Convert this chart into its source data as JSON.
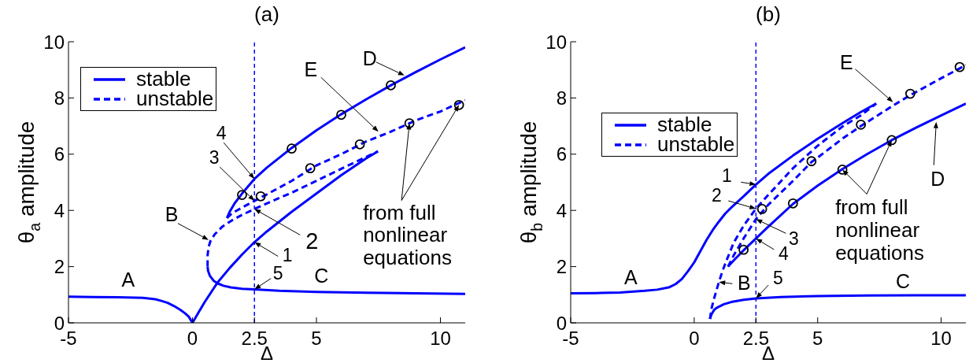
{
  "chart_data": [
    {
      "type": "line",
      "title": "(a)",
      "xlabel": "Δ",
      "ylabel": "θ$_{a}$ amplitude",
      "xlim": [
        -5,
        11
      ],
      "ylim": [
        0,
        10
      ],
      "xticks": [
        -5,
        0,
        2.5,
        5,
        10
      ],
      "yticks": [
        0,
        2,
        4,
        6,
        8,
        10
      ],
      "legend": "top left",
      "ref_lines": [
        {
          "axis": "x",
          "value": 2.5,
          "color": "#0000ff",
          "line_style": "dashed"
        }
      ],
      "annotations": [
        {
          "text": "A",
          "x": -2.5,
          "y": 0.9
        },
        {
          "text": "B",
          "x": 0.65,
          "y": 2.95
        },
        {
          "text": "C",
          "x": 5.2,
          "y": 1.1
        },
        {
          "text": "D",
          "x": 8.55,
          "y": 8.8
        },
        {
          "text": "E",
          "x": 7.5,
          "y": 6.8
        },
        {
          "text": "1",
          "x": 2.5,
          "y": 2.87
        },
        {
          "text": "2",
          "x": 2.5,
          "y": 4.05
        },
        {
          "text": "3",
          "x": 2.5,
          "y": 4.34
        },
        {
          "text": "4",
          "x": 2.5,
          "y": 5.12
        },
        {
          "text": "5",
          "x": 2.5,
          "y": 1.19
        },
        {
          "text": "from full\nnonlinear\nequations",
          "x": 8.75,
          "y": 7.1
        }
      ],
      "series": [
        {
          "name": "stable",
          "type": "line",
          "color": "#0000ff",
          "line_style": "solid",
          "x": [
            -5,
            -4,
            -3,
            -2,
            -1.5,
            -1.25,
            -1,
            -0.75,
            -0.5,
            -0.3,
            -0.15,
            0,
            0.25,
            0.5,
            1,
            1.5,
            2,
            2.5,
            3,
            4,
            5,
            6,
            7,
            7.48,
            null,
            0.61,
            0.63,
            0.7,
            0.85,
            1.02,
            1.25,
            1.55,
            2,
            2.5,
            3.5,
            5,
            7,
            9,
            11,
            null,
            1.39,
            1.5,
            1.7,
            2,
            2.5,
            3,
            4,
            5,
            6,
            7,
            8,
            9,
            10,
            11
          ],
          "values": [
            0.93,
            0.92,
            0.91,
            0.89,
            0.84,
            0.78,
            0.71,
            0.6,
            0.47,
            0.34,
            0.22,
            0,
            0.38,
            0.75,
            1.42,
            1.95,
            2.43,
            2.87,
            3.25,
            3.95,
            4.6,
            5.25,
            5.85,
            6.1,
            null,
            2.0,
            1.85,
            1.68,
            1.5,
            1.4,
            1.32,
            1.26,
            1.21,
            1.19,
            1.14,
            1.1,
            1.07,
            1.05,
            1.03,
            null,
            3.73,
            3.95,
            4.25,
            4.6,
            5.12,
            5.52,
            6.22,
            6.85,
            7.42,
            7.95,
            8.45,
            8.92,
            9.37,
            9.8
          ]
        },
        {
          "name": "unstable",
          "type": "line",
          "color": "#0000ff",
          "line_style": "dashed",
          "x": [
            0.61,
            0.61,
            0.65,
            0.73,
            0.9,
            1.2,
            1.6,
            2,
            2.5,
            3,
            4,
            5,
            6,
            7,
            7.48,
            null,
            1.39,
            1.6,
            2,
            2.5,
            3,
            4,
            5,
            6,
            7,
            8,
            9,
            10,
            11
          ],
          "values": [
            2.0,
            2.4,
            2.7,
            2.92,
            3.15,
            3.42,
            3.65,
            3.84,
            4.05,
            4.25,
            4.63,
            5.05,
            5.48,
            5.9,
            6.1,
            null,
            3.73,
            3.9,
            4.1,
            4.34,
            4.57,
            5.05,
            5.6,
            6.0,
            6.45,
            6.8,
            7.2,
            7.52,
            7.92
          ]
        },
        {
          "type": "scatter",
          "color": "#000000",
          "marker": "circle",
          "x": [
            2,
            2.75,
            4,
            4.75,
            6,
            6.75,
            8,
            8.75,
            10.75
          ],
          "values": [
            4.55,
            4.5,
            6.2,
            5.5,
            7.4,
            6.35,
            8.45,
            7.1,
            7.75
          ]
        }
      ]
    },
    {
      "type": "line",
      "title": "(b)",
      "xlabel": "Δ",
      "ylabel": "θ$_{b}$ amplitude",
      "xlim": [
        -5,
        11
      ],
      "ylim": [
        0,
        10
      ],
      "xticks": [
        -5,
        0,
        2.5,
        5,
        10
      ],
      "yticks": [
        0,
        2,
        4,
        6,
        8,
        10
      ],
      "legend": "top left",
      "ref_lines": [
        {
          "axis": "x",
          "value": 2.5,
          "color": "#0000ff",
          "line_style": "dashed"
        }
      ],
      "annotations": [
        {
          "text": "A",
          "x": -2.5,
          "y": 1.1
        },
        {
          "text": "B",
          "x": 1.0,
          "y": 1.45
        },
        {
          "text": "C",
          "x": 8.45,
          "y": 0.97
        },
        {
          "text": "D",
          "x": 9.8,
          "y": 7.15
        },
        {
          "text": "E",
          "x": 8.05,
          "y": 7.85
        },
        {
          "text": "1",
          "x": 2.5,
          "y": 4.92
        },
        {
          "text": "2",
          "x": 2.5,
          "y": 4.06
        },
        {
          "text": "3",
          "x": 2.5,
          "y": 3.69
        },
        {
          "text": "4",
          "x": 2.5,
          "y": 3.0
        },
        {
          "text": "5",
          "x": 2.5,
          "y": 0.87
        },
        {
          "text": "from full\nnonlinear\nequations",
          "x": 6,
          "y": 5.45
        }
      ],
      "series": [
        {
          "name": "stable",
          "type": "line",
          "color": "#0000ff",
          "line_style": "solid",
          "x": [
            -5,
            -4,
            -3,
            -2,
            -1.5,
            -1,
            -0.75,
            -0.5,
            -0.25,
            0,
            0.25,
            0.5,
            0.75,
            1,
            1.25,
            1.5,
            2,
            2.5,
            3,
            4,
            5,
            6,
            6.75,
            7.37,
            null,
            0.64,
            0.7,
            0.8,
            0.9,
            1.2,
            1.5,
            2,
            2.5,
            3.5,
            5,
            7,
            9,
            11,
            null,
            1.37,
            1.6,
            2,
            2.5,
            3,
            4,
            5,
            6,
            7,
            8,
            9,
            10,
            11
          ],
          "values": [
            1.05,
            1.06,
            1.08,
            1.14,
            1.18,
            1.27,
            1.38,
            1.56,
            1.84,
            2.15,
            2.55,
            2.95,
            3.3,
            3.6,
            3.88,
            4.1,
            4.5,
            4.92,
            5.3,
            5.95,
            6.55,
            7.1,
            7.5,
            7.8,
            null,
            0.14,
            0.3,
            0.45,
            0.53,
            0.66,
            0.74,
            0.82,
            0.87,
            0.92,
            0.95,
            0.97,
            0.98,
            0.98,
            null,
            2.0,
            2.22,
            2.58,
            3.0,
            3.42,
            4.23,
            4.88,
            5.47,
            6.0,
            6.5,
            6.95,
            7.38,
            7.8
          ]
        },
        {
          "name": "unstable",
          "type": "line",
          "color": "#0000ff",
          "line_style": "dashed",
          "x": [
            0.64,
            0.7,
            0.8,
            0.9,
            1.0,
            1.15,
            1.3,
            1.6,
            2,
            2.5,
            3,
            4,
            5,
            6,
            6.75,
            7.37,
            null,
            1.37,
            1.6,
            2,
            2.5,
            3,
            4,
            4.75,
            5,
            6,
            6.75,
            8,
            8.75,
            10,
            10.75,
            11
          ],
          "values": [
            0.14,
            0.5,
            0.85,
            1.15,
            1.45,
            1.85,
            2.2,
            2.85,
            3.45,
            4.06,
            4.55,
            5.5,
            6.3,
            6.98,
            7.38,
            7.8,
            null,
            2.0,
            2.4,
            3.0,
            3.69,
            4.2,
            5.05,
            5.72,
            5.88,
            6.55,
            7.0,
            7.7,
            8.1,
            8.7,
            9.05,
            9.18
          ]
        },
        {
          "type": "scatter",
          "color": "#000000",
          "marker": "circle",
          "x": [
            2,
            2.75,
            4,
            4.75,
            6,
            6.75,
            8,
            8.75,
            10.75
          ],
          "values": [
            2.6,
            4.05,
            4.25,
            5.75,
            5.45,
            7.05,
            6.5,
            8.15,
            9.1
          ]
        }
      ]
    }
  ]
}
